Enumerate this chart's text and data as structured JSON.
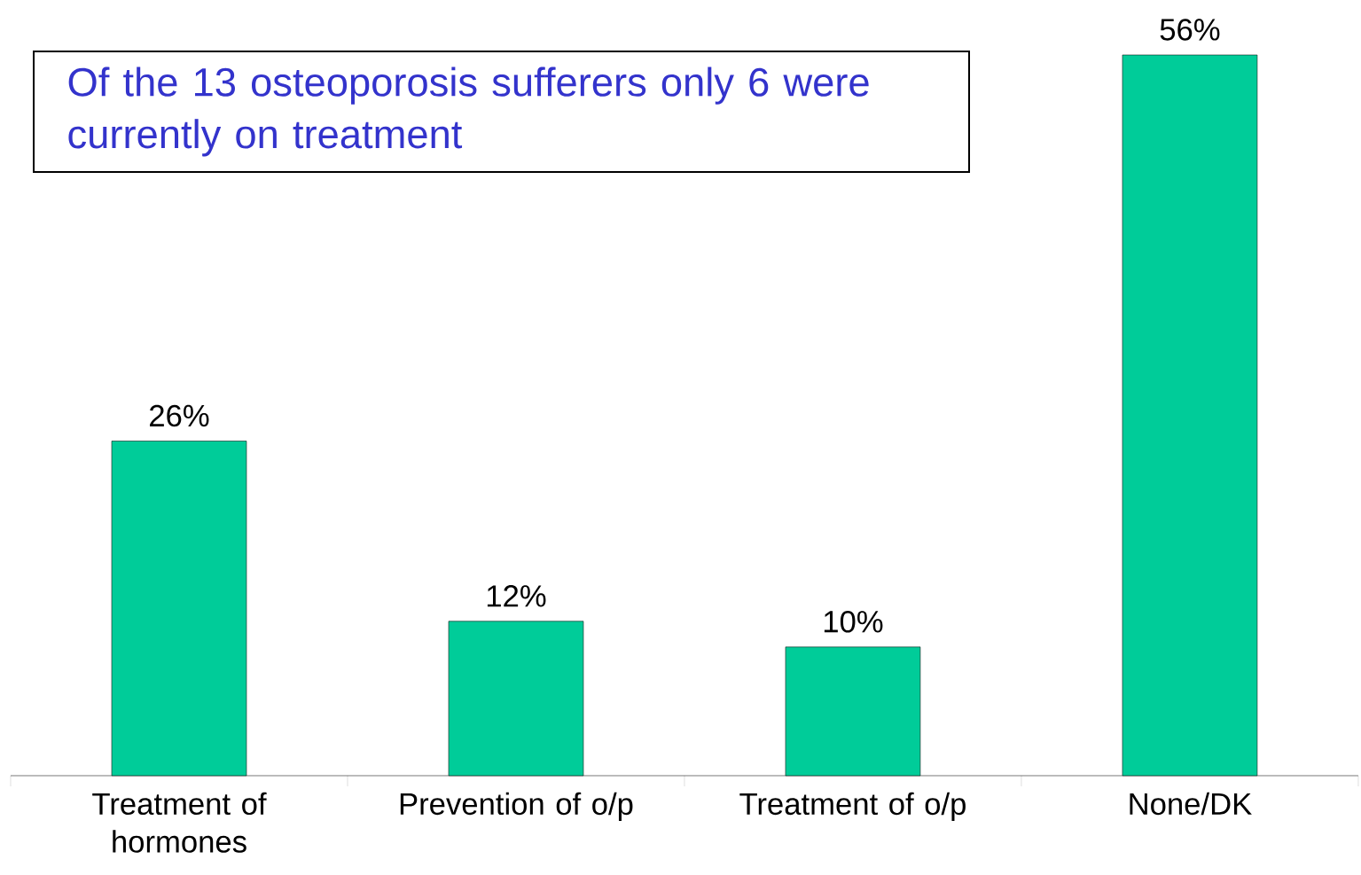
{
  "chart_data": {
    "type": "bar",
    "annotations": [
      "Of the 13 osteoporosis sufferers only 6 were currently on treatment"
    ],
    "categories": [
      "Treatment of hormones",
      "Prevention of o/p",
      "Treatment of o/p",
      "None/DK"
    ],
    "values": [
      26,
      12,
      10,
      56
    ],
    "value_labels": [
      "26%",
      "12%",
      "10%",
      "56%"
    ],
    "color": "#00cc99"
  }
}
